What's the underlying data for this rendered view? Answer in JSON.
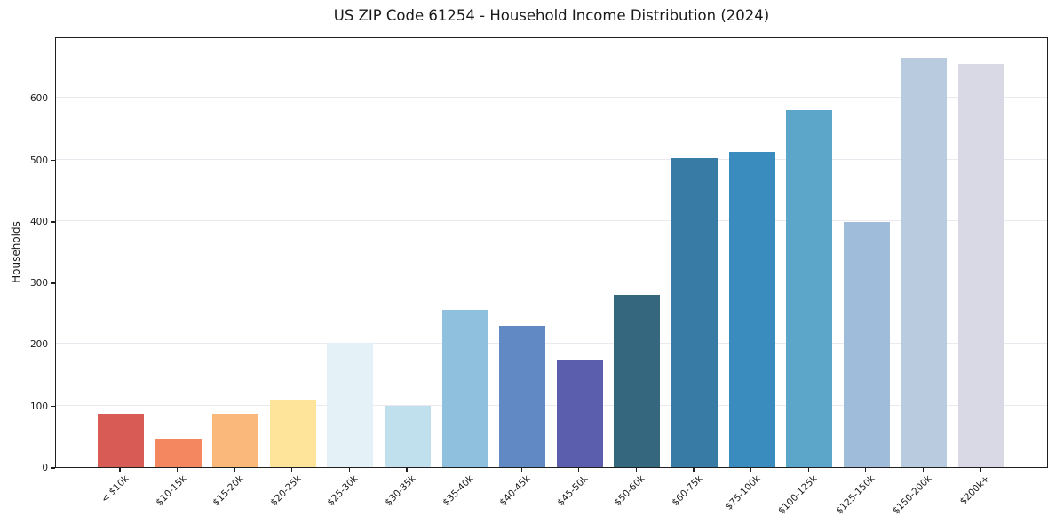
{
  "chart_data": {
    "type": "bar",
    "title": "US ZIP Code 61254 - Household Income Distribution (2024)",
    "xlabel": "",
    "ylabel": "Households",
    "ylim": [
      0,
      700
    ],
    "yticks": [
      0,
      100,
      200,
      300,
      400,
      500,
      600
    ],
    "grid": true,
    "legend": "none",
    "categories": [
      "< $10k",
      "$10-15k",
      "$15-20k",
      "$20-25k",
      "$25-30k",
      "$30-35k",
      "$35-40k",
      "$40-45k",
      "$45-50k",
      "$50-60k",
      "$60-75k",
      "$75-100k",
      "$100-125k",
      "$125-150k",
      "$150-200k",
      "$200k+"
    ],
    "values": [
      87,
      46,
      87,
      110,
      202,
      100,
      255,
      229,
      174,
      280,
      502,
      513,
      580,
      399,
      665,
      655
    ],
    "bar_colors": [
      "#d85c55",
      "#f4875f",
      "#fab97a",
      "#fde49a",
      "#e4f1f7",
      "#c0e0ed",
      "#8fc0de",
      "#6189c3",
      "#5a5ead",
      "#35677f",
      "#387ca6",
      "#3a8cbe",
      "#5ca7c9",
      "#9fbcda",
      "#b9cbdf",
      "#d8d9e5"
    ]
  },
  "colors": {
    "background": "#ffffff",
    "grid": "#e9e9ef",
    "spine": "#1f1f1f",
    "text": "#1a1a1a"
  }
}
